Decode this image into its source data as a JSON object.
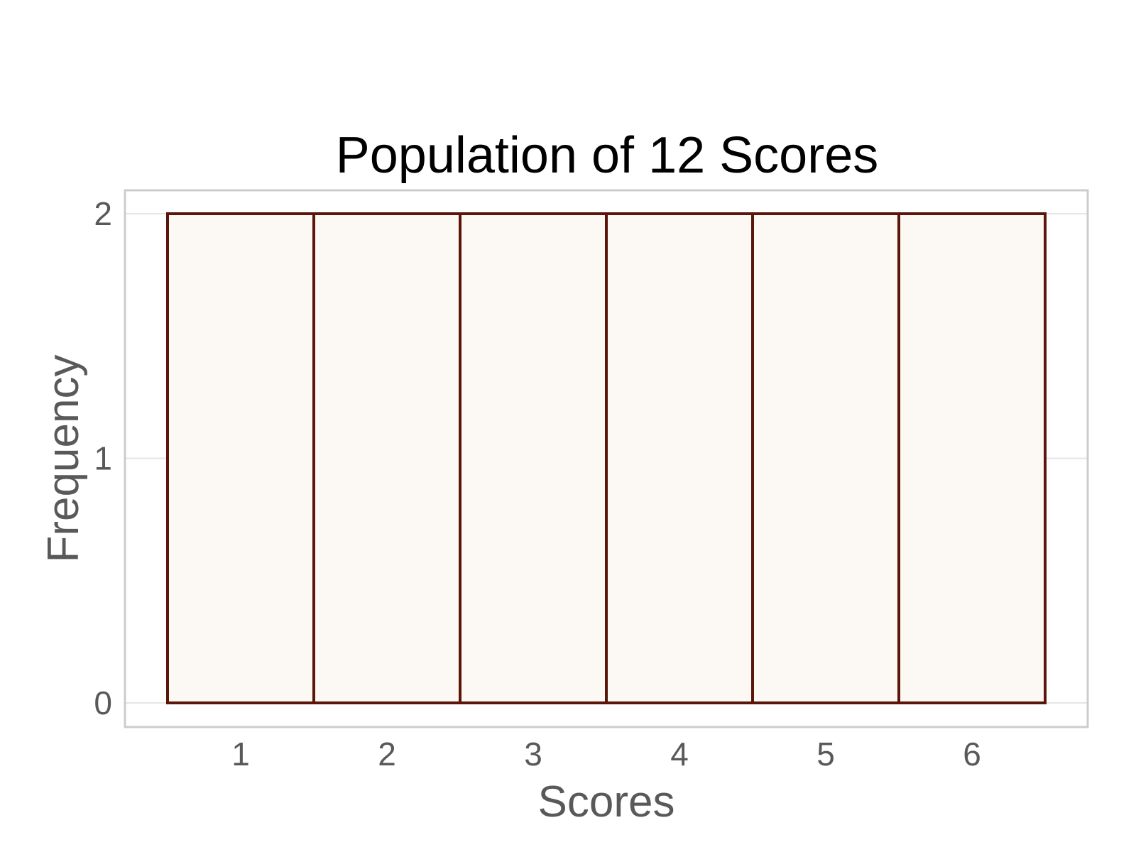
{
  "chart_data": {
    "type": "bar",
    "title": "Population of 12 Scores",
    "xlabel": "Scores",
    "ylabel": "Frequency",
    "categories": [
      "1",
      "2",
      "3",
      "4",
      "5",
      "6"
    ],
    "values": [
      2,
      2,
      2,
      2,
      2,
      2
    ],
    "ylim": [
      0,
      2
    ],
    "yticks": [
      "0",
      "1",
      "2"
    ],
    "grid": true,
    "legend": "none",
    "colors": {
      "bar_fill": "#fcf8f4",
      "bar_stroke": "#5a1608",
      "grid": "#e5e5e5",
      "panel_border": "#cccccc"
    }
  }
}
